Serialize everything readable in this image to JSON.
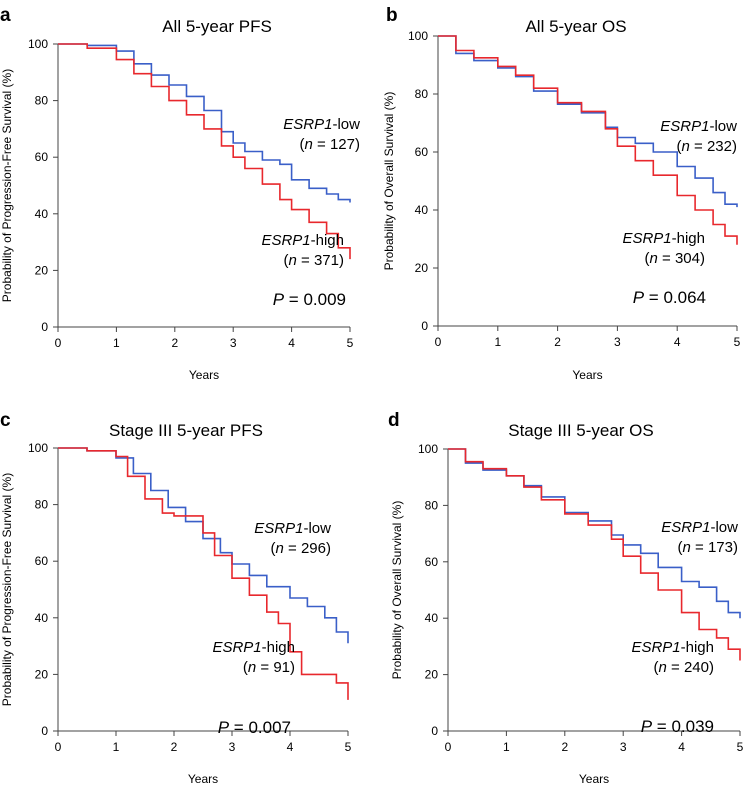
{
  "chart_data": [
    {
      "type": "line",
      "panel_label": "a",
      "title": "All 5-year PFS",
      "xlabel": "Years",
      "ylabel": "Probability of Progression-Free Survival (%)",
      "xlim": [
        0,
        5
      ],
      "ylim": [
        0,
        100
      ],
      "xticks": [
        "0",
        "1",
        "2",
        "3",
        "4",
        "5"
      ],
      "yticks": [
        "0",
        "20",
        "40",
        "60",
        "80",
        "100"
      ],
      "series": [
        {
          "name": "ESRP1-low",
          "gene": "ESRP1",
          "suffix": "-low",
          "n_prefix": "(",
          "n_var": "n",
          "n_text": " = 127)",
          "color": "#3a5fc8",
          "x": [
            0,
            0.5,
            1.0,
            1.3,
            1.6,
            1.9,
            2.2,
            2.5,
            2.8,
            3.0,
            3.2,
            3.5,
            3.8,
            4.0,
            4.3,
            4.6,
            4.8,
            5.0
          ],
          "y": [
            100,
            99.5,
            97.5,
            93,
            89,
            85.5,
            81.5,
            76.5,
            69,
            65,
            62,
            59,
            57.5,
            52,
            49,
            47,
            45,
            44
          ]
        },
        {
          "name": "ESRP1-high",
          "gene": "ESRP1",
          "suffix": "-high",
          "n_prefix": "(",
          "n_var": "n",
          "n_text": " = 371)",
          "color": "#e8282d",
          "x": [
            0,
            0.5,
            1.0,
            1.3,
            1.6,
            1.9,
            2.2,
            2.5,
            2.8,
            3.0,
            3.2,
            3.5,
            3.8,
            4.0,
            4.3,
            4.6,
            4.8,
            5.0
          ],
          "y": [
            100,
            98.5,
            94.5,
            89.5,
            85,
            80,
            75,
            70,
            64,
            60,
            56,
            50.5,
            45,
            41.5,
            37,
            33,
            28,
            24
          ]
        }
      ],
      "p_var": "P",
      "p_text": " = 0.009"
    },
    {
      "type": "line",
      "panel_label": "b",
      "title": "All 5-year OS",
      "xlabel": "Years",
      "ylabel": "Probability of Overall Survival (%)",
      "xlim": [
        0,
        5
      ],
      "ylim": [
        0,
        100
      ],
      "xticks": [
        "0",
        "1",
        "2",
        "3",
        "4",
        "5"
      ],
      "yticks": [
        "0",
        "20",
        "40",
        "60",
        "80",
        "100"
      ],
      "series": [
        {
          "name": "ESRP1-low",
          "gene": "ESRP1",
          "suffix": "-low",
          "n_prefix": "(",
          "n_var": "n",
          "n_text": " = 232)",
          "color": "#3a5fc8",
          "x": [
            0,
            0.3,
            0.6,
            1.0,
            1.3,
            1.6,
            2.0,
            2.4,
            2.8,
            3.0,
            3.3,
            3.6,
            4.0,
            4.3,
            4.6,
            4.8,
            5.0
          ],
          "y": [
            100,
            94,
            91.5,
            89,
            86,
            81,
            76.5,
            73.5,
            68.5,
            65,
            63,
            60,
            55,
            51,
            46,
            42,
            41
          ]
        },
        {
          "name": "ESRP1-high",
          "gene": "ESRP1",
          "suffix": "-high",
          "n_prefix": "(",
          "n_var": "n",
          "n_text": " = 304)",
          "color": "#e8282d",
          "x": [
            0,
            0.3,
            0.6,
            1.0,
            1.3,
            1.6,
            2.0,
            2.4,
            2.8,
            3.0,
            3.3,
            3.6,
            4.0,
            4.3,
            4.6,
            4.8,
            5.0
          ],
          "y": [
            100,
            95,
            92.5,
            89.5,
            86.5,
            82,
            77,
            74,
            68,
            62,
            57,
            52,
            45,
            40,
            35,
            31,
            28
          ]
        }
      ],
      "p_var": "P",
      "p_text": " = 0.064"
    },
    {
      "type": "line",
      "panel_label": "c",
      "title": "Stage III 5-year PFS",
      "xlabel": "Years",
      "ylabel": "Probability of Progression-Free Survival (%)",
      "xlim": [
        0,
        5
      ],
      "ylim": [
        0,
        100
      ],
      "xticks": [
        "0",
        "1",
        "2",
        "3",
        "4",
        "5"
      ],
      "yticks": [
        "0",
        "20",
        "40",
        "60",
        "80",
        "100"
      ],
      "series": [
        {
          "name": "ESRP1-low",
          "gene": "ESRP1",
          "suffix": "-low",
          "n_prefix": "(",
          "n_var": "n",
          "n_text": " = 296)",
          "color": "#3a5fc8",
          "x": [
            0,
            0.5,
            1.0,
            1.3,
            1.6,
            1.9,
            2.2,
            2.5,
            2.8,
            3.0,
            3.3,
            3.6,
            4.0,
            4.3,
            4.6,
            4.8,
            5.0
          ],
          "y": [
            100,
            99,
            96.5,
            91,
            85,
            79,
            74,
            68,
            63,
            59,
            55,
            51,
            47,
            44,
            40,
            35,
            31
          ]
        },
        {
          "name": "ESRP1-high",
          "gene": "ESRP1",
          "suffix": "-high",
          "n_prefix": "(",
          "n_var": "n",
          "n_text": " = 91)",
          "color": "#e8282d",
          "x": [
            0,
            0.5,
            1.0,
            1.2,
            1.5,
            1.8,
            2.0,
            2.3,
            2.5,
            2.7,
            3.0,
            3.3,
            3.6,
            3.8,
            4.0,
            4.2,
            4.5,
            4.8,
            5.0
          ],
          "y": [
            100,
            99,
            97,
            90,
            82,
            77,
            76,
            76,
            70,
            62,
            54,
            48,
            42,
            38,
            28,
            20,
            20,
            17,
            11
          ]
        }
      ],
      "p_var": "P",
      "p_text": " = 0.007"
    },
    {
      "type": "line",
      "panel_label": "d",
      "title": "Stage III 5-year OS",
      "xlabel": "Years",
      "ylabel": "Probability of Overall Survival (%)",
      "xlim": [
        0,
        5
      ],
      "ylim": [
        0,
        100
      ],
      "xticks": [
        "0",
        "1",
        "2",
        "3",
        "4",
        "5"
      ],
      "yticks": [
        "0",
        "20",
        "40",
        "60",
        "80",
        "100"
      ],
      "series": [
        {
          "name": "ESRP1-low",
          "gene": "ESRP1",
          "suffix": "-low",
          "n_prefix": "(",
          "n_var": "n",
          "n_text": " = 173)",
          "color": "#3a5fc8",
          "x": [
            0,
            0.3,
            0.6,
            1.0,
            1.3,
            1.6,
            2.0,
            2.4,
            2.8,
            3.0,
            3.3,
            3.6,
            4.0,
            4.3,
            4.6,
            4.8,
            5.0
          ],
          "y": [
            100,
            95,
            92.5,
            90.5,
            87,
            83,
            77.5,
            74.5,
            69.5,
            66,
            63,
            58,
            53,
            51,
            46,
            42,
            40
          ]
        },
        {
          "name": "ESRP1-high",
          "gene": "ESRP1",
          "suffix": "-high",
          "n_prefix": "(",
          "n_var": "n",
          "n_text": " = 240)",
          "color": "#e8282d",
          "x": [
            0,
            0.3,
            0.6,
            1.0,
            1.3,
            1.6,
            2.0,
            2.4,
            2.8,
            3.0,
            3.3,
            3.6,
            4.0,
            4.3,
            4.6,
            4.8,
            5.0
          ],
          "y": [
            100,
            95.5,
            93,
            90.5,
            86.5,
            82,
            77,
            73,
            68,
            62,
            56,
            50,
            42,
            36,
            33,
            29,
            25
          ]
        }
      ],
      "p_var": "P",
      "p_text": " = 0.039"
    }
  ]
}
